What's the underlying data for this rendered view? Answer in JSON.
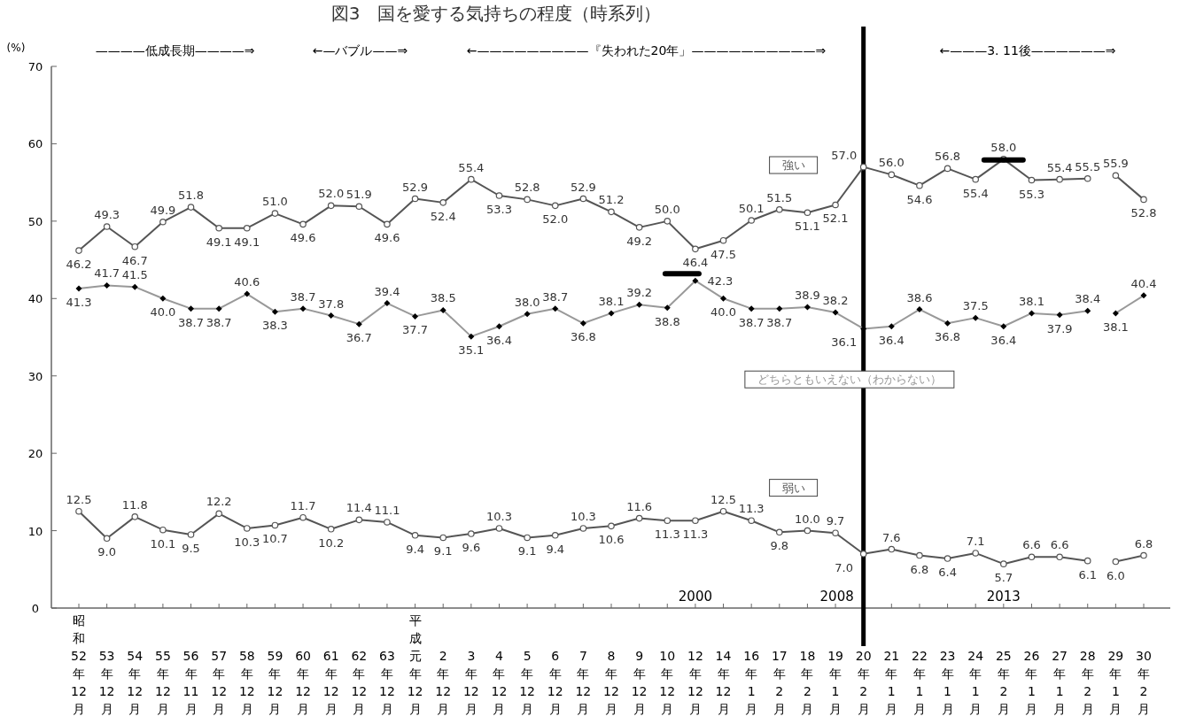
{
  "chart_data": {
    "type": "line",
    "title": "図3　国を愛する気持ちの程度（時系列）",
    "ylabel": "(%)",
    "categories": [
      "昭和52年12月",
      "53年12月",
      "54年12月",
      "55年12月",
      "56年11月",
      "57年12月",
      "58年12月",
      "59年12月",
      "60年12月",
      "61年12月",
      "62年12月",
      "63年12月",
      "平成元年12月",
      "2年12月",
      "3年12月",
      "4年12月",
      "5年12月",
      "6年12月",
      "7年12月",
      "8年12月",
      "9年12月",
      "10年12月",
      "12年12月",
      "14年12月",
      "16年1月",
      "17年2月",
      "18年2月",
      "19年1月",
      "20年2月",
      "21年1月",
      "22年1月",
      "23年1月",
      "24年1月",
      "25年2月",
      "26年1月",
      "27年1月",
      "28年2月",
      "29年1月",
      "30年2月"
    ],
    "ylim": [
      0,
      70
    ],
    "yticks": [
      0,
      10,
      20,
      30,
      40,
      50,
      60,
      70
    ],
    "grid": false,
    "legend": false,
    "line_style": "solid",
    "series": [
      {
        "name": "強い",
        "color": "#555555",
        "marker": "circle",
        "values": [
          46.2,
          49.3,
          46.7,
          49.9,
          51.8,
          49.1,
          49.1,
          51.0,
          49.6,
          52.0,
          51.9,
          49.6,
          52.9,
          52.4,
          55.4,
          53.3,
          52.8,
          52.0,
          52.9,
          51.2,
          49.2,
          50.0,
          46.4,
          47.5,
          50.1,
          51.5,
          51.1,
          52.1,
          57.0,
          56.0,
          54.6,
          56.8,
          55.4,
          58.0,
          55.3,
          55.4,
          55.5,
          null,
          null
        ],
        "value_labels": [
          "46.2",
          "49.3",
          "46.7",
          "49.9",
          "51.8",
          "49.1",
          "49.1",
          "51.0",
          "49.6",
          "52.0",
          "51.9",
          "49.6",
          "52.9",
          "52.4",
          "55.4",
          "53.3",
          "52.8",
          "52.0",
          "52.9",
          "51.2",
          "49.2",
          "50.0",
          "46.4",
          "47.5",
          "50.1",
          "51.5",
          "51.1",
          "52.1",
          "57.0",
          "56.0",
          "54.6",
          "56.8",
          "55.4",
          "58.0",
          "55.3",
          "55.4",
          "55.5",
          null,
          null
        ]
      },
      {
        "color": "#555555",
        "marker": "circle",
        "values": [
          null,
          null,
          null,
          null,
          null,
          null,
          null,
          null,
          null,
          null,
          null,
          null,
          null,
          null,
          null,
          null,
          null,
          null,
          null,
          null,
          null,
          null,
          null,
          null,
          null,
          null,
          null,
          null,
          null,
          null,
          null,
          null,
          null,
          null,
          null,
          null,
          null,
          55.9,
          52.8
        ],
        "value_labels": [
          null,
          null,
          null,
          null,
          null,
          null,
          null,
          null,
          null,
          null,
          null,
          null,
          null,
          null,
          null,
          null,
          null,
          null,
          null,
          null,
          null,
          null,
          null,
          null,
          null,
          null,
          null,
          null,
          null,
          null,
          null,
          null,
          null,
          null,
          null,
          null,
          null,
          "55.9",
          "52.8"
        ]
      },
      {
        "name": "どちらともいえない（わからない）",
        "color": "#999999",
        "marker": "diamond",
        "values": [
          41.3,
          41.7,
          41.5,
          40.0,
          38.7,
          38.7,
          40.6,
          38.3,
          38.7,
          37.8,
          36.7,
          39.4,
          37.7,
          38.5,
          35.1,
          36.4,
          38.0,
          38.7,
          36.8,
          38.1,
          39.2,
          38.8,
          42.3,
          40.0,
          38.7,
          38.7,
          38.9,
          38.2,
          36.1,
          36.4,
          38.6,
          36.8,
          37.5,
          36.4,
          38.1,
          37.9,
          38.4,
          null,
          null
        ],
        "value_labels": [
          "41.3",
          "41.7",
          "41.5",
          "40.0",
          "38.7",
          "38.7",
          "40.6",
          "38.3",
          "38.7",
          "37.8",
          "36.7",
          "39.4",
          "37.7",
          "38.5",
          "35.1",
          "36.4",
          "38.0",
          "38.7",
          "36.8",
          "38.1",
          "39.2",
          "38.8",
          "42.3",
          "40.0",
          "38.7",
          "38.7",
          "38.9",
          "38.2",
          "36.1",
          "36.4",
          "38.6",
          "36.8",
          "37.5",
          "36.4",
          "38.1",
          "37.9",
          "38.4",
          null,
          null
        ]
      },
      {
        "color": "#999999",
        "marker": "diamond",
        "values": [
          null,
          null,
          null,
          null,
          null,
          null,
          null,
          null,
          null,
          null,
          null,
          null,
          null,
          null,
          null,
          null,
          null,
          null,
          null,
          null,
          null,
          null,
          null,
          null,
          null,
          null,
          null,
          null,
          null,
          null,
          null,
          null,
          null,
          null,
          null,
          null,
          null,
          38.1,
          40.4
        ],
        "value_labels": [
          null,
          null,
          null,
          null,
          null,
          null,
          null,
          null,
          null,
          null,
          null,
          null,
          null,
          null,
          null,
          null,
          null,
          null,
          null,
          null,
          null,
          null,
          null,
          null,
          null,
          null,
          null,
          null,
          null,
          null,
          null,
          null,
          null,
          null,
          null,
          null,
          null,
          "38.1",
          "40.4"
        ]
      },
      {
        "name": "弱い",
        "color": "#555555",
        "marker": "circle",
        "values": [
          12.5,
          9.0,
          11.8,
          10.1,
          9.5,
          12.2,
          10.3,
          10.7,
          11.7,
          10.2,
          11.4,
          11.1,
          9.4,
          9.1,
          9.6,
          10.3,
          9.1,
          9.4,
          10.3,
          10.6,
          11.6,
          11.3,
          11.3,
          12.5,
          11.3,
          9.8,
          10.0,
          9.7,
          7.0,
          7.6,
          6.8,
          6.4,
          7.1,
          5.7,
          6.6,
          6.6,
          6.1,
          null,
          null
        ],
        "value_labels": [
          "12.5",
          "9.0",
          "11.8",
          "10.1",
          "9.5",
          "12.2",
          "10.3",
          "10.7",
          "11.7",
          "10.2",
          "11.4",
          "11.1",
          "9.4",
          "9.1",
          "9.6",
          "10.3",
          "9.1",
          "9.4",
          "10.3",
          "10.6",
          "11.6",
          "11.3",
          "11.3",
          "12.5",
          "11.3",
          "9.8",
          "10.0",
          "9.7",
          "7.0",
          "7.6",
          "6.8",
          "6.4",
          "7.1",
          "5.7",
          "6.6",
          "6.6",
          "6.1",
          null,
          null
        ]
      },
      {
        "color": "#555555",
        "marker": "circle",
        "values": [
          null,
          null,
          null,
          null,
          null,
          null,
          null,
          null,
          null,
          null,
          null,
          null,
          null,
          null,
          null,
          null,
          null,
          null,
          null,
          null,
          null,
          null,
          null,
          null,
          null,
          null,
          null,
          null,
          null,
          null,
          null,
          null,
          null,
          null,
          null,
          null,
          null,
          6.0,
          6.8
        ],
        "value_labels": [
          null,
          null,
          null,
          null,
          null,
          null,
          null,
          null,
          null,
          null,
          null,
          null,
          null,
          null,
          null,
          null,
          null,
          null,
          null,
          null,
          null,
          null,
          null,
          null,
          null,
          null,
          null,
          null,
          null,
          null,
          null,
          null,
          null,
          null,
          null,
          null,
          null,
          "6.0",
          "6.8"
        ]
      }
    ],
    "ref_lines": [
      {
        "axis": "x",
        "value": "20年2月",
        "color": "#000000"
      }
    ],
    "annotations": [
      "————低成長期————⇒",
      "←—バブル——⇒",
      "←—————————『失われた20年」——————————⇒",
      "←———3. 11後——————⇒",
      "2000",
      "2008",
      "2013"
    ]
  }
}
